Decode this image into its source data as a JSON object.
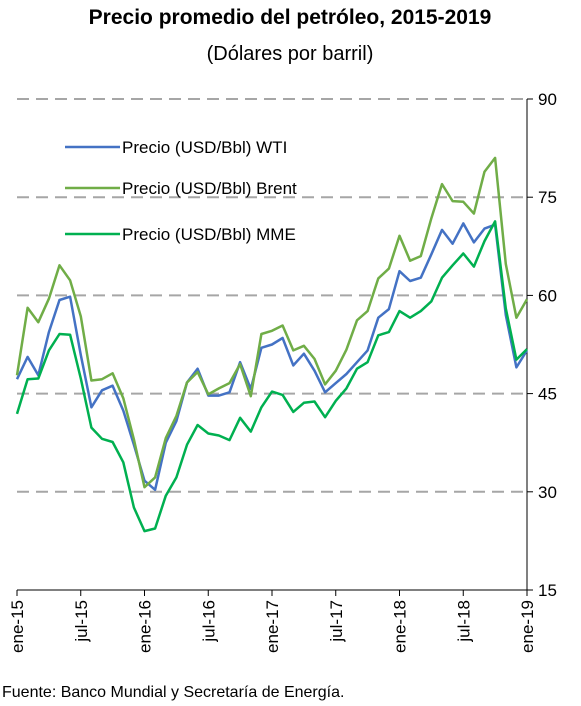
{
  "chart_data": {
    "type": "line",
    "title": "Precio promedio del petróleo, 2015-2019",
    "subtitle": "(Dólares por barril)",
    "source": "Fuente: Banco Mundial y Secretaría de Energía.",
    "categories": [
      "ene-15",
      null,
      null,
      null,
      null,
      null,
      "jul-15",
      null,
      null,
      null,
      null,
      null,
      "ene-16",
      null,
      null,
      null,
      null,
      null,
      "jul-16",
      null,
      null,
      null,
      null,
      null,
      "ene-17",
      null,
      null,
      null,
      null,
      null,
      "jul-17",
      null,
      null,
      null,
      null,
      null,
      "ene-18",
      null,
      null,
      null,
      null,
      null,
      "jul-18",
      null,
      null,
      null,
      null,
      null,
      "ene-19"
    ],
    "series": [
      {
        "name": "Precio (USD/Bbl) WTI",
        "color": "#4472c4",
        "values": [
          47.2,
          50.6,
          47.8,
          54.4,
          59.3,
          59.8,
          50.9,
          42.9,
          45.5,
          46.2,
          42.4,
          37.2,
          31.7,
          30.3,
          37.5,
          40.8,
          46.7,
          48.8,
          44.7,
          44.7,
          45.2,
          49.8,
          45.7,
          52.0,
          52.5,
          53.5,
          49.3,
          51.1,
          48.5,
          45.2,
          46.6,
          48.0,
          49.8,
          51.6,
          56.6,
          57.9,
          63.7,
          62.2,
          62.7,
          66.3,
          70.0,
          67.9,
          71.0,
          68.1,
          70.2,
          70.8,
          57.0,
          49.0,
          51.6
        ]
      },
      {
        "name": "Precio (USD/Bbl) Brent",
        "color": "#70ad47",
        "values": [
          47.8,
          58.1,
          55.9,
          59.5,
          64.6,
          62.3,
          56.8,
          47.0,
          47.2,
          48.1,
          44.3,
          38.0,
          30.7,
          32.2,
          38.2,
          41.6,
          46.7,
          48.3,
          44.9,
          45.8,
          46.6,
          49.5,
          44.6,
          54.1,
          54.6,
          55.4,
          51.6,
          52.3,
          50.3,
          46.4,
          48.5,
          51.7,
          56.2,
          57.6,
          62.6,
          64.1,
          69.1,
          65.3,
          66.0,
          71.8,
          77.0,
          74.4,
          74.3,
          72.5,
          78.9,
          81.0,
          64.8,
          56.6,
          59.4
        ]
      },
      {
        "name": "Precio (USD/Bbl) MME",
        "color": "#00b050",
        "values": [
          41.9,
          47.2,
          47.3,
          51.6,
          54.1,
          54.0,
          47.3,
          39.8,
          38.1,
          37.6,
          34.5,
          27.6,
          24.0,
          24.4,
          29.4,
          32.2,
          37.2,
          40.2,
          38.9,
          38.6,
          37.9,
          41.3,
          39.2,
          42.9,
          45.3,
          44.8,
          42.2,
          43.6,
          43.8,
          41.4,
          43.9,
          45.8,
          48.8,
          49.8,
          53.9,
          54.4,
          57.6,
          56.6,
          57.6,
          59.1,
          62.7,
          64.6,
          66.4,
          64.4,
          68.3,
          71.3,
          58.0,
          50.2,
          51.8
        ]
      }
    ],
    "ylim": [
      15,
      90
    ],
    "yticks": [
      15,
      30,
      45,
      60,
      75,
      90
    ],
    "grid": true,
    "legend": "upper left"
  }
}
